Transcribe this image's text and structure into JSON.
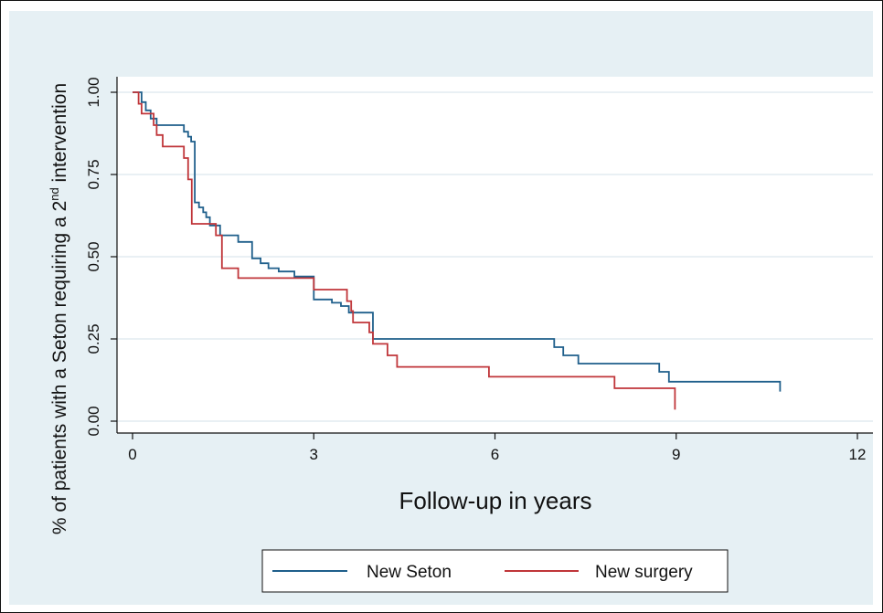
{
  "chart_data": {
    "type": "line",
    "subtype": "kaplan-meier-step",
    "ylabel": "% of patients with a Seton requiring a 2nd intervention",
    "ylabel_parts": {
      "before": "% of patients with a Seton requiring a 2",
      "sup": "nd",
      "after": " intervention"
    },
    "xlabel": "Follow-up in years",
    "xlim": [
      0,
      12
    ],
    "ylim": [
      0,
      1
    ],
    "x_ticks": [
      0,
      3,
      6,
      9,
      12
    ],
    "x_tick_labels": [
      "0",
      "3",
      "6",
      "9",
      "12"
    ],
    "y_ticks": [
      0,
      0.25,
      0.5,
      0.75,
      1
    ],
    "y_tick_labels": [
      "0.00",
      "0.25",
      "0.50",
      "0.75",
      "1.00"
    ],
    "grid": "horizontal",
    "legend_position": "bottom",
    "colors": {
      "plot_bg": "#ffffff",
      "figure_bg": "#e6f0f4",
      "grid": "#e2ecf1"
    },
    "series": [
      {
        "name": "New Seton",
        "color": "#1f5f8b",
        "points": [
          [
            0,
            1.0
          ],
          [
            0.15,
            1.0
          ],
          [
            0.15,
            0.97
          ],
          [
            0.22,
            0.97
          ],
          [
            0.22,
            0.945
          ],
          [
            0.3,
            0.945
          ],
          [
            0.3,
            0.92
          ],
          [
            0.4,
            0.92
          ],
          [
            0.4,
            0.9
          ],
          [
            0.85,
            0.9
          ],
          [
            0.85,
            0.88
          ],
          [
            0.92,
            0.88
          ],
          [
            0.92,
            0.865
          ],
          [
            0.97,
            0.865
          ],
          [
            0.97,
            0.85
          ],
          [
            1.03,
            0.85
          ],
          [
            1.03,
            0.665
          ],
          [
            1.1,
            0.665
          ],
          [
            1.1,
            0.65
          ],
          [
            1.17,
            0.65
          ],
          [
            1.17,
            0.635
          ],
          [
            1.22,
            0.635
          ],
          [
            1.22,
            0.62
          ],
          [
            1.28,
            0.62
          ],
          [
            1.28,
            0.595
          ],
          [
            1.45,
            0.595
          ],
          [
            1.45,
            0.565
          ],
          [
            1.75,
            0.565
          ],
          [
            1.75,
            0.545
          ],
          [
            1.98,
            0.545
          ],
          [
            1.98,
            0.495
          ],
          [
            2.12,
            0.495
          ],
          [
            2.12,
            0.48
          ],
          [
            2.25,
            0.48
          ],
          [
            2.25,
            0.465
          ],
          [
            2.42,
            0.465
          ],
          [
            2.42,
            0.455
          ],
          [
            2.68,
            0.455
          ],
          [
            2.68,
            0.44
          ],
          [
            3.0,
            0.44
          ],
          [
            3.0,
            0.37
          ],
          [
            3.3,
            0.37
          ],
          [
            3.3,
            0.36
          ],
          [
            3.45,
            0.36
          ],
          [
            3.45,
            0.35
          ],
          [
            3.58,
            0.35
          ],
          [
            3.58,
            0.33
          ],
          [
            3.98,
            0.33
          ],
          [
            3.98,
            0.25
          ],
          [
            6.98,
            0.25
          ],
          [
            6.98,
            0.225
          ],
          [
            7.13,
            0.225
          ],
          [
            7.13,
            0.2
          ],
          [
            7.38,
            0.2
          ],
          [
            7.38,
            0.175
          ],
          [
            8.72,
            0.175
          ],
          [
            8.72,
            0.15
          ],
          [
            8.88,
            0.15
          ],
          [
            8.88,
            0.12
          ],
          [
            10.72,
            0.12
          ],
          [
            10.72,
            0.09
          ]
        ]
      },
      {
        "name": "New surgery",
        "color": "#c0363a",
        "points": [
          [
            0,
            1.0
          ],
          [
            0.1,
            1.0
          ],
          [
            0.1,
            0.965
          ],
          [
            0.15,
            0.965
          ],
          [
            0.15,
            0.935
          ],
          [
            0.35,
            0.935
          ],
          [
            0.35,
            0.9
          ],
          [
            0.4,
            0.9
          ],
          [
            0.4,
            0.87
          ],
          [
            0.5,
            0.87
          ],
          [
            0.5,
            0.835
          ],
          [
            0.85,
            0.835
          ],
          [
            0.85,
            0.8
          ],
          [
            0.92,
            0.8
          ],
          [
            0.92,
            0.735
          ],
          [
            0.98,
            0.735
          ],
          [
            0.98,
            0.6
          ],
          [
            1.38,
            0.6
          ],
          [
            1.38,
            0.565
          ],
          [
            1.48,
            0.565
          ],
          [
            1.48,
            0.465
          ],
          [
            1.75,
            0.465
          ],
          [
            1.75,
            0.435
          ],
          [
            3.0,
            0.435
          ],
          [
            3.0,
            0.4
          ],
          [
            3.55,
            0.4
          ],
          [
            3.55,
            0.365
          ],
          [
            3.62,
            0.365
          ],
          [
            3.62,
            0.335
          ],
          [
            3.65,
            0.335
          ],
          [
            3.65,
            0.3
          ],
          [
            3.92,
            0.3
          ],
          [
            3.92,
            0.27
          ],
          [
            3.98,
            0.27
          ],
          [
            3.98,
            0.235
          ],
          [
            4.22,
            0.235
          ],
          [
            4.22,
            0.2
          ],
          [
            4.38,
            0.2
          ],
          [
            4.38,
            0.165
          ],
          [
            5.9,
            0.165
          ],
          [
            5.9,
            0.135
          ],
          [
            7.98,
            0.135
          ],
          [
            7.98,
            0.1
          ],
          [
            8.98,
            0.1
          ],
          [
            8.98,
            0.035
          ]
        ]
      }
    ]
  }
}
